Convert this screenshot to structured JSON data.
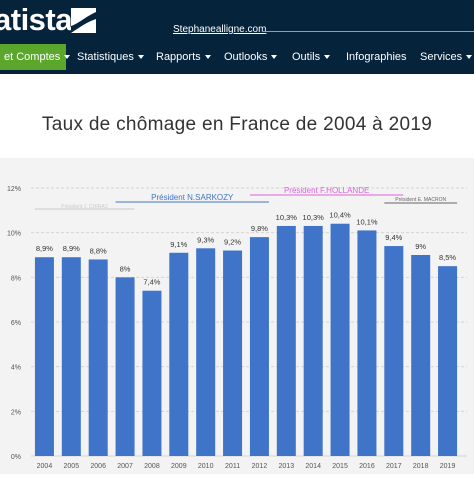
{
  "header": {
    "logo_text": "atista",
    "site_link": "Stephanealligne.com"
  },
  "nav": {
    "items": [
      {
        "label": "et Comptes",
        "active": true,
        "has_caret": true
      },
      {
        "label": "Statistiques",
        "active": false,
        "has_caret": true
      },
      {
        "label": "Rapports",
        "active": false,
        "has_caret": true
      },
      {
        "label": "Outlooks",
        "active": false,
        "has_caret": true
      },
      {
        "label": "Outils",
        "active": false,
        "has_caret": true
      },
      {
        "label": "Infographies",
        "active": false,
        "has_caret": false
      },
      {
        "label": "Services",
        "active": false,
        "has_caret": true
      }
    ]
  },
  "colors": {
    "header_bg": "#05233b",
    "active_nav": "#5aa72c",
    "bar": "#3f74c9",
    "sarkozy": "#3f74c9",
    "hollande": "#e060e0",
    "macron": "#666666"
  },
  "chart_data": {
    "type": "bar",
    "title": "Taux de chômage en France de 2004 à 2019",
    "categories": [
      "2004",
      "2005",
      "2006",
      "2007",
      "2008",
      "2009",
      "2010",
      "2011",
      "2012",
      "2013",
      "2014",
      "2015",
      "2016",
      "2017",
      "2018",
      "2019"
    ],
    "values": [
      8.9,
      8.9,
      8.8,
      8.0,
      7.4,
      9.1,
      9.3,
      9.2,
      9.8,
      10.3,
      10.3,
      10.4,
      10.1,
      9.4,
      9.0,
      8.5
    ],
    "value_labels": [
      "8,9%",
      "8,9%",
      "8,8%",
      "8%",
      "7,4%",
      "9,1%",
      "9,3%",
      "9,2%",
      "9,8%",
      "10,3%",
      "10,3%",
      "10,4%",
      "10,1%",
      "9,4%",
      "9%",
      "8,5%"
    ],
    "y_ticks": [
      "0%",
      "2%",
      "4%",
      "6%",
      "8%",
      "10%",
      "12%"
    ],
    "ylim": [
      0,
      12
    ],
    "grid": true,
    "annotations": [
      {
        "text": "Président J. CHIRAC",
        "from": "2004",
        "to": "2007",
        "faded": true
      },
      {
        "text": "Président N.SARKOZY",
        "from": "2007",
        "to": "2012"
      },
      {
        "text": "Président F.HOLLANDE",
        "from": "2012",
        "to": "2017"
      },
      {
        "text": "Président E. MACRON",
        "from": "2017",
        "to": "2019"
      }
    ]
  }
}
